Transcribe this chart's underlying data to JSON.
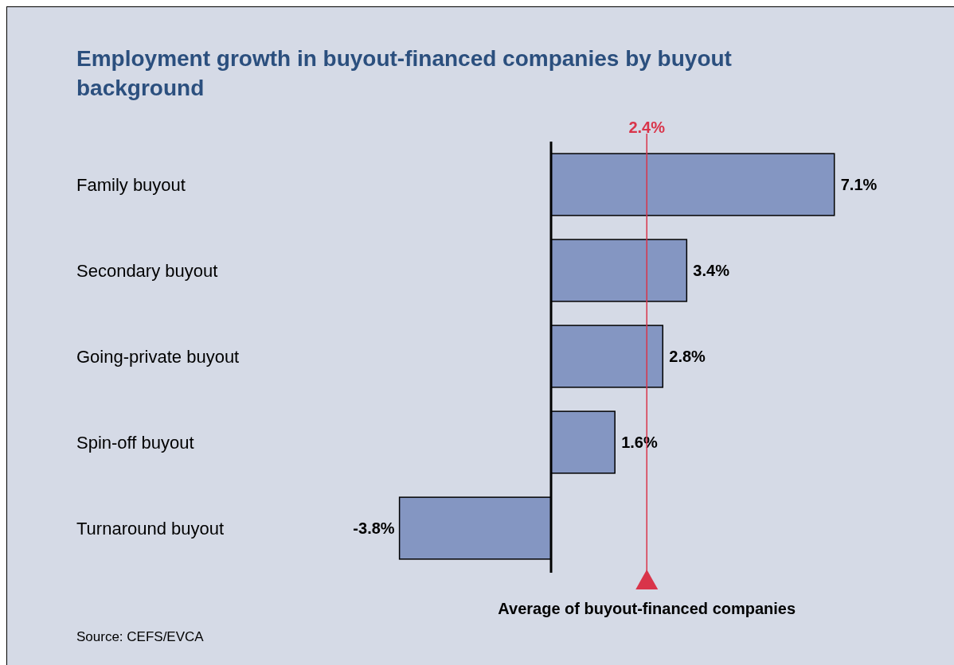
{
  "chart_data": {
    "type": "bar",
    "orientation": "horizontal",
    "title": "Employment growth in buyout-financed companies by buyout background",
    "categories": [
      "Family buyout",
      "Secondary buyout",
      "Going-private buyout",
      "Spin-off buyout",
      "Turnaround buyout"
    ],
    "values": [
      7.1,
      3.4,
      2.8,
      1.6,
      -3.8
    ],
    "color": "#8496c2",
    "value_labels": [
      "7.1%",
      "3.4%",
      "2.8%",
      "1.6%",
      "-3.8%"
    ],
    "ref_lines": [
      {
        "axis": "x",
        "value": 2.4,
        "label": "2.4%",
        "color": "#d9344a"
      }
    ],
    "annotations": [
      "Average of buyout-financed companies",
      "Source: CEFS/EVCA"
    ]
  }
}
